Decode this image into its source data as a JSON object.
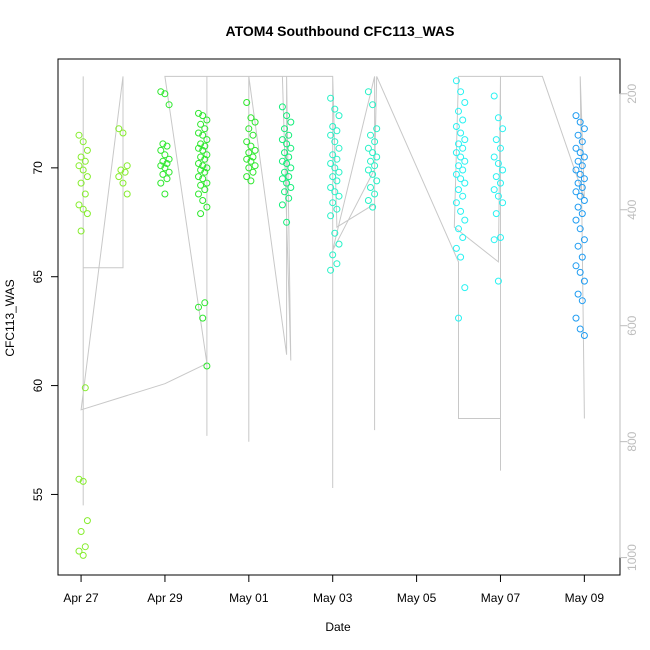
{
  "chart_data": {
    "type": "scatter",
    "title": "ATOM4 Southbound CFC113_WAS",
    "xlabel": "Date",
    "ylabel": "CFC113_WAS",
    "y2label": "",
    "x_ticks": [
      "Apr 27",
      "Apr 29",
      "May 01",
      "May 03",
      "May 05",
      "May 07",
      "May 09"
    ],
    "y_ticks": [
      55,
      60,
      65,
      70
    ],
    "y2_ticks": [
      200,
      400,
      600,
      800,
      1000
    ],
    "y2_reversed": true,
    "xlim": [
      -0.55,
      12.85
    ],
    "ylim": [
      51.3,
      75.0
    ],
    "y2lim": [
      1030,
      140
    ],
    "grid": false,
    "colors": {
      "altitude_line": "#c8c8c8",
      "right_axis": "#bdbdbd",
      "palette": [
        "#86ed2e",
        "#2ee82e",
        "#14ee7a",
        "#28f2c8",
        "#2af2f2",
        "#1e9cf2"
      ]
    },
    "series": [
      {
        "day": 0.05,
        "color_index": 0,
        "values": [
          71.5,
          71.2,
          70.8,
          70.5,
          70.3,
          70.1,
          69.9,
          69.6,
          69.3,
          68.8,
          68.3,
          68.1,
          67.9,
          67.1,
          59.9,
          55.7,
          55.6,
          53.8,
          53.3,
          52.6,
          52.4,
          52.2
        ]
      },
      {
        "day": 1.0,
        "color_index": 0,
        "values": [
          71.8,
          71.6,
          70.1,
          69.9,
          69.8,
          69.6,
          69.3,
          68.8
        ]
      },
      {
        "day": 2.0,
        "color_index": 1,
        "values": [
          73.5,
          73.4,
          72.9,
          71.1,
          71.0,
          70.8,
          70.6,
          70.4,
          70.3,
          70.2,
          70.1,
          70.0,
          69.8,
          69.7,
          69.5,
          69.3,
          68.8
        ]
      },
      {
        "day": 2.9,
        "color_index": 1,
        "values": [
          72.5,
          72.4,
          72.2,
          72.0,
          71.8,
          71.6,
          71.5,
          71.3,
          71.1,
          71.0,
          70.9,
          70.8,
          70.6,
          70.5,
          70.4,
          70.2,
          70.1,
          70.0,
          69.9,
          69.8,
          69.6,
          69.5,
          69.3,
          69.2,
          69.0,
          68.8,
          68.5,
          68.2,
          67.9,
          63.8,
          63.6,
          63.1,
          60.9
        ]
      },
      {
        "day": 4.05,
        "color_index": 1,
        "values": [
          73.0,
          72.3,
          72.1,
          71.8,
          71.5,
          71.2,
          71.0,
          70.8,
          70.7,
          70.5,
          70.4,
          70.3,
          70.1,
          70.0,
          69.8,
          69.6,
          69.4
        ]
      },
      {
        "day": 4.9,
        "color_index": 2,
        "values": [
          72.8,
          72.4,
          72.1,
          71.8,
          71.5,
          71.3,
          71.1,
          70.9,
          70.7,
          70.5,
          70.3,
          70.2,
          70.0,
          69.8,
          69.6,
          69.5,
          69.3,
          69.1,
          68.9,
          68.6,
          68.3,
          67.5
        ]
      },
      {
        "day": 6.05,
        "color_index": 3,
        "values": [
          73.2,
          72.7,
          72.4,
          71.9,
          71.7,
          71.5,
          71.2,
          70.9,
          70.6,
          70.4,
          70.2,
          70.0,
          69.8,
          69.6,
          69.4,
          69.1,
          68.9,
          68.7,
          68.4,
          68.1,
          67.8,
          67.0,
          66.5,
          66.0,
          65.6,
          65.3
        ]
      },
      {
        "day": 6.95,
        "color_index": 3,
        "values": [
          73.5,
          72.9,
          71.8,
          71.5,
          71.2,
          70.9,
          70.7,
          70.5,
          70.3,
          70.1,
          69.9,
          69.7,
          69.4,
          69.1,
          68.8,
          68.5,
          68.2
        ]
      },
      {
        "day": 9.05,
        "color_index": 4,
        "values": [
          74.0,
          73.5,
          73.0,
          72.6,
          72.2,
          71.9,
          71.6,
          71.3,
          71.1,
          70.9,
          70.7,
          70.5,
          70.3,
          70.1,
          69.9,
          69.7,
          69.5,
          69.3,
          69.0,
          68.7,
          68.4,
          68.0,
          67.6,
          67.2,
          66.8,
          66.3,
          65.9,
          64.5,
          63.1
        ]
      },
      {
        "day": 9.95,
        "color_index": 4,
        "values": [
          73.3,
          72.3,
          71.8,
          71.3,
          70.9,
          70.5,
          70.2,
          69.9,
          69.6,
          69.3,
          69.0,
          68.7,
          68.4,
          67.9,
          66.8,
          66.7,
          64.8
        ]
      },
      {
        "day": 11.9,
        "color_index": 5,
        "values": [
          72.4,
          72.1,
          71.8,
          71.5,
          71.2,
          70.9,
          70.7,
          70.5,
          70.3,
          70.1,
          69.9,
          69.7,
          69.5,
          69.3,
          69.1,
          68.9,
          68.7,
          68.5,
          68.2,
          67.9,
          67.6,
          67.2,
          66.7,
          66.4,
          65.9,
          65.5,
          65.2,
          64.8,
          64.2,
          63.9,
          63.1,
          62.6,
          62.3
        ]
      }
    ],
    "altitude_path": [
      [
        0.05,
        910
      ],
      [
        0.05,
        170
      ],
      [
        0.05,
        500
      ],
      [
        1.0,
        500
      ],
      [
        1.0,
        170
      ],
      [
        0.0,
        745
      ],
      [
        2.0,
        700
      ],
      [
        3.0,
        665
      ],
      [
        2.0,
        170
      ],
      [
        3.0,
        170
      ],
      [
        3.0,
        790
      ],
      [
        3.0,
        170
      ],
      [
        4.0,
        170
      ],
      [
        4.0,
        800
      ],
      [
        4.0,
        170
      ],
      [
        4.9,
        650
      ],
      [
        4.9,
        170
      ],
      [
        5.0,
        660
      ],
      [
        4.8,
        170
      ],
      [
        4.0,
        170
      ],
      [
        6.0,
        170
      ],
      [
        6.0,
        880
      ],
      [
        6.0,
        170
      ],
      [
        6.1,
        430
      ],
      [
        7.0,
        390
      ],
      [
        7.0,
        780
      ],
      [
        7.0,
        170
      ],
      [
        6.0,
        470
      ],
      [
        7.0,
        330
      ],
      [
        7.05,
        170
      ],
      [
        9.0,
        490
      ],
      [
        9.0,
        760
      ],
      [
        10.0,
        760
      ],
      [
        10.0,
        170
      ],
      [
        10.0,
        850
      ],
      [
        10.0,
        170
      ],
      [
        9.95,
        490
      ],
      [
        8.9,
        430
      ],
      [
        9.0,
        170
      ],
      [
        10.2,
        170
      ],
      [
        11.0,
        170
      ],
      [
        12.0,
        380
      ],
      [
        11.9,
        170
      ],
      [
        12.0,
        760
      ]
    ]
  }
}
